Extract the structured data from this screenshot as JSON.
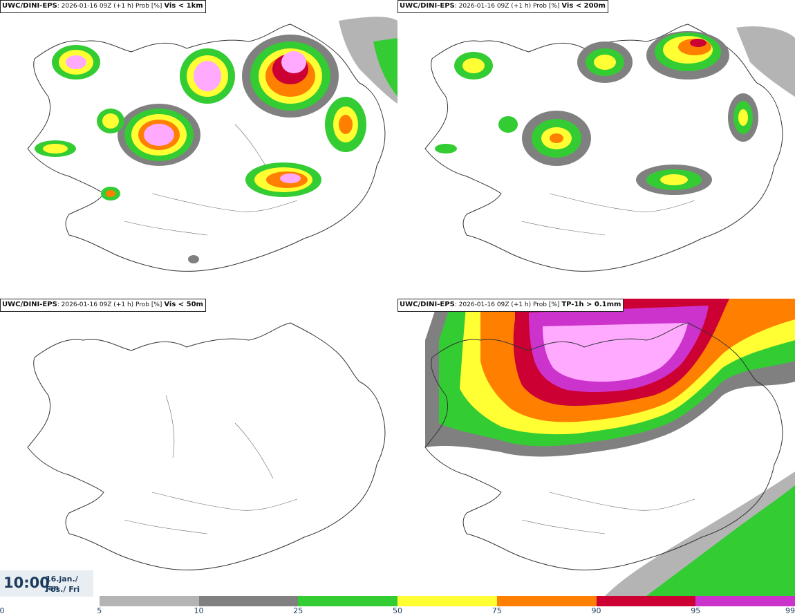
{
  "panels": [
    {
      "model": "UWC/DINI-EPS",
      "run": ": 2026-01-16 09Z (+1 h) Prob [%]",
      "condition": "Vis < 1km"
    },
    {
      "model": "UWC/DINI-EPS",
      "run": ": 2026-01-16 09Z (+1 h) Prob [%]",
      "condition": "Vis < 200m"
    },
    {
      "model": "UWC/DINI-EPS",
      "run": ": 2026-01-16 09Z (+1 h) Prob [%]",
      "condition": "Vis < 50m"
    },
    {
      "model": "UWC/DINI-EPS",
      "run": ": 2026-01-16 09Z (+1 h) Prob [%]",
      "condition": "TP-1h > 0.1mm"
    }
  ],
  "valid_time": {
    "clock": "10:00",
    "date": "16.jan./ Jan",
    "day": "Fös./ Fri"
  },
  "colorbar": {
    "ticks": [
      "0",
      "5",
      "10",
      "25",
      "50",
      "75",
      "90",
      "95",
      "99"
    ],
    "colors": [
      "#ffffff",
      "#b4b4b4",
      "#808080",
      "#33cc33",
      "#ffff33",
      "#ff7f00",
      "#cc0033",
      "#cc33cc",
      "#ffaaff"
    ]
  }
}
